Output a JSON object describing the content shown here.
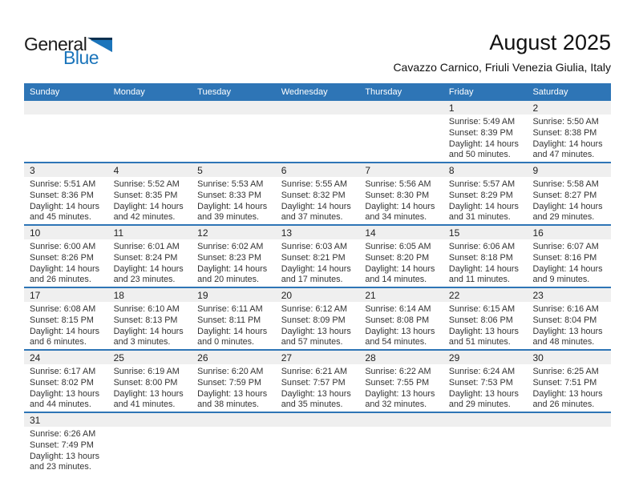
{
  "logo": {
    "line1": "General",
    "line2": "Blue"
  },
  "title": "August 2025",
  "subtitle": "Cavazzo Carnico, Friuli Venezia Giulia, Italy",
  "weekdays": [
    "Sunday",
    "Monday",
    "Tuesday",
    "Wednesday",
    "Thursday",
    "Friday",
    "Saturday"
  ],
  "colors": {
    "header_bg": "#2E75B6",
    "row_border": "#2E75B6",
    "daynum_bg": "#EFEFEF",
    "logo_blue": "#1B75BB",
    "logo_dark": "#0D3050",
    "header_text": "#FFFFFF",
    "body_text": "#333333",
    "title_text": "#111111"
  },
  "weeks": [
    [
      null,
      null,
      null,
      null,
      null,
      {
        "day": "1",
        "sunrise": "Sunrise: 5:49 AM",
        "sunset": "Sunset: 8:39 PM",
        "daylight1": "Daylight: 14 hours",
        "daylight2": "and 50 minutes."
      },
      {
        "day": "2",
        "sunrise": "Sunrise: 5:50 AM",
        "sunset": "Sunset: 8:38 PM",
        "daylight1": "Daylight: 14 hours",
        "daylight2": "and 47 minutes."
      }
    ],
    [
      {
        "day": "3",
        "sunrise": "Sunrise: 5:51 AM",
        "sunset": "Sunset: 8:36 PM",
        "daylight1": "Daylight: 14 hours",
        "daylight2": "and 45 minutes."
      },
      {
        "day": "4",
        "sunrise": "Sunrise: 5:52 AM",
        "sunset": "Sunset: 8:35 PM",
        "daylight1": "Daylight: 14 hours",
        "daylight2": "and 42 minutes."
      },
      {
        "day": "5",
        "sunrise": "Sunrise: 5:53 AM",
        "sunset": "Sunset: 8:33 PM",
        "daylight1": "Daylight: 14 hours",
        "daylight2": "and 39 minutes."
      },
      {
        "day": "6",
        "sunrise": "Sunrise: 5:55 AM",
        "sunset": "Sunset: 8:32 PM",
        "daylight1": "Daylight: 14 hours",
        "daylight2": "and 37 minutes."
      },
      {
        "day": "7",
        "sunrise": "Sunrise: 5:56 AM",
        "sunset": "Sunset: 8:30 PM",
        "daylight1": "Daylight: 14 hours",
        "daylight2": "and 34 minutes."
      },
      {
        "day": "8",
        "sunrise": "Sunrise: 5:57 AM",
        "sunset": "Sunset: 8:29 PM",
        "daylight1": "Daylight: 14 hours",
        "daylight2": "and 31 minutes."
      },
      {
        "day": "9",
        "sunrise": "Sunrise: 5:58 AM",
        "sunset": "Sunset: 8:27 PM",
        "daylight1": "Daylight: 14 hours",
        "daylight2": "and 29 minutes."
      }
    ],
    [
      {
        "day": "10",
        "sunrise": "Sunrise: 6:00 AM",
        "sunset": "Sunset: 8:26 PM",
        "daylight1": "Daylight: 14 hours",
        "daylight2": "and 26 minutes."
      },
      {
        "day": "11",
        "sunrise": "Sunrise: 6:01 AM",
        "sunset": "Sunset: 8:24 PM",
        "daylight1": "Daylight: 14 hours",
        "daylight2": "and 23 minutes."
      },
      {
        "day": "12",
        "sunrise": "Sunrise: 6:02 AM",
        "sunset": "Sunset: 8:23 PM",
        "daylight1": "Daylight: 14 hours",
        "daylight2": "and 20 minutes."
      },
      {
        "day": "13",
        "sunrise": "Sunrise: 6:03 AM",
        "sunset": "Sunset: 8:21 PM",
        "daylight1": "Daylight: 14 hours",
        "daylight2": "and 17 minutes."
      },
      {
        "day": "14",
        "sunrise": "Sunrise: 6:05 AM",
        "sunset": "Sunset: 8:20 PM",
        "daylight1": "Daylight: 14 hours",
        "daylight2": "and 14 minutes."
      },
      {
        "day": "15",
        "sunrise": "Sunrise: 6:06 AM",
        "sunset": "Sunset: 8:18 PM",
        "daylight1": "Daylight: 14 hours",
        "daylight2": "and 11 minutes."
      },
      {
        "day": "16",
        "sunrise": "Sunrise: 6:07 AM",
        "sunset": "Sunset: 8:16 PM",
        "daylight1": "Daylight: 14 hours",
        "daylight2": "and 9 minutes."
      }
    ],
    [
      {
        "day": "17",
        "sunrise": "Sunrise: 6:08 AM",
        "sunset": "Sunset: 8:15 PM",
        "daylight1": "Daylight: 14 hours",
        "daylight2": "and 6 minutes."
      },
      {
        "day": "18",
        "sunrise": "Sunrise: 6:10 AM",
        "sunset": "Sunset: 8:13 PM",
        "daylight1": "Daylight: 14 hours",
        "daylight2": "and 3 minutes."
      },
      {
        "day": "19",
        "sunrise": "Sunrise: 6:11 AM",
        "sunset": "Sunset: 8:11 PM",
        "daylight1": "Daylight: 14 hours",
        "daylight2": "and 0 minutes."
      },
      {
        "day": "20",
        "sunrise": "Sunrise: 6:12 AM",
        "sunset": "Sunset: 8:09 PM",
        "daylight1": "Daylight: 13 hours",
        "daylight2": "and 57 minutes."
      },
      {
        "day": "21",
        "sunrise": "Sunrise: 6:14 AM",
        "sunset": "Sunset: 8:08 PM",
        "daylight1": "Daylight: 13 hours",
        "daylight2": "and 54 minutes."
      },
      {
        "day": "22",
        "sunrise": "Sunrise: 6:15 AM",
        "sunset": "Sunset: 8:06 PM",
        "daylight1": "Daylight: 13 hours",
        "daylight2": "and 51 minutes."
      },
      {
        "day": "23",
        "sunrise": "Sunrise: 6:16 AM",
        "sunset": "Sunset: 8:04 PM",
        "daylight1": "Daylight: 13 hours",
        "daylight2": "and 48 minutes."
      }
    ],
    [
      {
        "day": "24",
        "sunrise": "Sunrise: 6:17 AM",
        "sunset": "Sunset: 8:02 PM",
        "daylight1": "Daylight: 13 hours",
        "daylight2": "and 44 minutes."
      },
      {
        "day": "25",
        "sunrise": "Sunrise: 6:19 AM",
        "sunset": "Sunset: 8:00 PM",
        "daylight1": "Daylight: 13 hours",
        "daylight2": "and 41 minutes."
      },
      {
        "day": "26",
        "sunrise": "Sunrise: 6:20 AM",
        "sunset": "Sunset: 7:59 PM",
        "daylight1": "Daylight: 13 hours",
        "daylight2": "and 38 minutes."
      },
      {
        "day": "27",
        "sunrise": "Sunrise: 6:21 AM",
        "sunset": "Sunset: 7:57 PM",
        "daylight1": "Daylight: 13 hours",
        "daylight2": "and 35 minutes."
      },
      {
        "day": "28",
        "sunrise": "Sunrise: 6:22 AM",
        "sunset": "Sunset: 7:55 PM",
        "daylight1": "Daylight: 13 hours",
        "daylight2": "and 32 minutes."
      },
      {
        "day": "29",
        "sunrise": "Sunrise: 6:24 AM",
        "sunset": "Sunset: 7:53 PM",
        "daylight1": "Daylight: 13 hours",
        "daylight2": "and 29 minutes."
      },
      {
        "day": "30",
        "sunrise": "Sunrise: 6:25 AM",
        "sunset": "Sunset: 7:51 PM",
        "daylight1": "Daylight: 13 hours",
        "daylight2": "and 26 minutes."
      }
    ],
    [
      {
        "day": "31",
        "sunrise": "Sunrise: 6:26 AM",
        "sunset": "Sunset: 7:49 PM",
        "daylight1": "Daylight: 13 hours",
        "daylight2": "and 23 minutes."
      },
      null,
      null,
      null,
      null,
      null,
      null
    ]
  ]
}
